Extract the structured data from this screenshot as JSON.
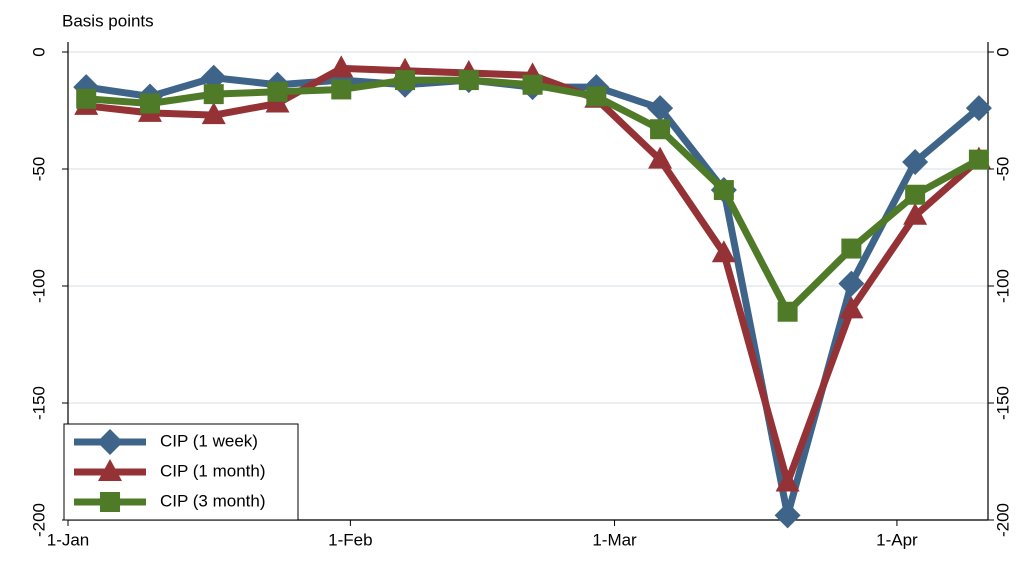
{
  "chart_data": {
    "type": "line",
    "y_label": "Basis points",
    "x": [
      2,
      9,
      16,
      23,
      30,
      37,
      44,
      51,
      58,
      65,
      72,
      79,
      86,
      93,
      100
    ],
    "xlim": [
      0,
      101
    ],
    "xticks": [
      {
        "value": 0,
        "label": "1-Jan"
      },
      {
        "value": 31,
        "label": "1-Feb"
      },
      {
        "value": 60,
        "label": "1-Mar"
      },
      {
        "value": 91,
        "label": "1-Apr"
      }
    ],
    "ylim": [
      -200,
      0
    ],
    "yticks": [
      0,
      -50,
      -100,
      -150,
      -200
    ],
    "y2lim": [
      -200,
      0
    ],
    "y2ticks": [
      0,
      -50,
      -100,
      -150,
      -200
    ],
    "grid": true,
    "legend": "lower left",
    "series": [
      {
        "name": "CIP (1 week)",
        "color": "#3f6489",
        "marker": "diamond",
        "values": [
          -15,
          -19,
          -11,
          -14,
          -12,
          -14,
          -12,
          -15,
          -15,
          -24,
          -59,
          -198,
          -99,
          -47,
          -24
        ]
      },
      {
        "name": "CIP (1 month)",
        "color": "#943236",
        "marker": "triangle",
        "values": [
          -23,
          -26,
          -27,
          -22,
          -7,
          -8,
          -9,
          -10,
          -20,
          -46,
          -86,
          -184,
          -110,
          -70,
          -46
        ]
      },
      {
        "name": "CIP (3 month)",
        "color": "#4f7a28",
        "marker": "square",
        "values": [
          -20,
          -22,
          -18,
          -17,
          -16,
          -12,
          -12,
          -14,
          -19,
          -33,
          -59,
          -111,
          -84,
          -61,
          -46
        ]
      }
    ]
  }
}
